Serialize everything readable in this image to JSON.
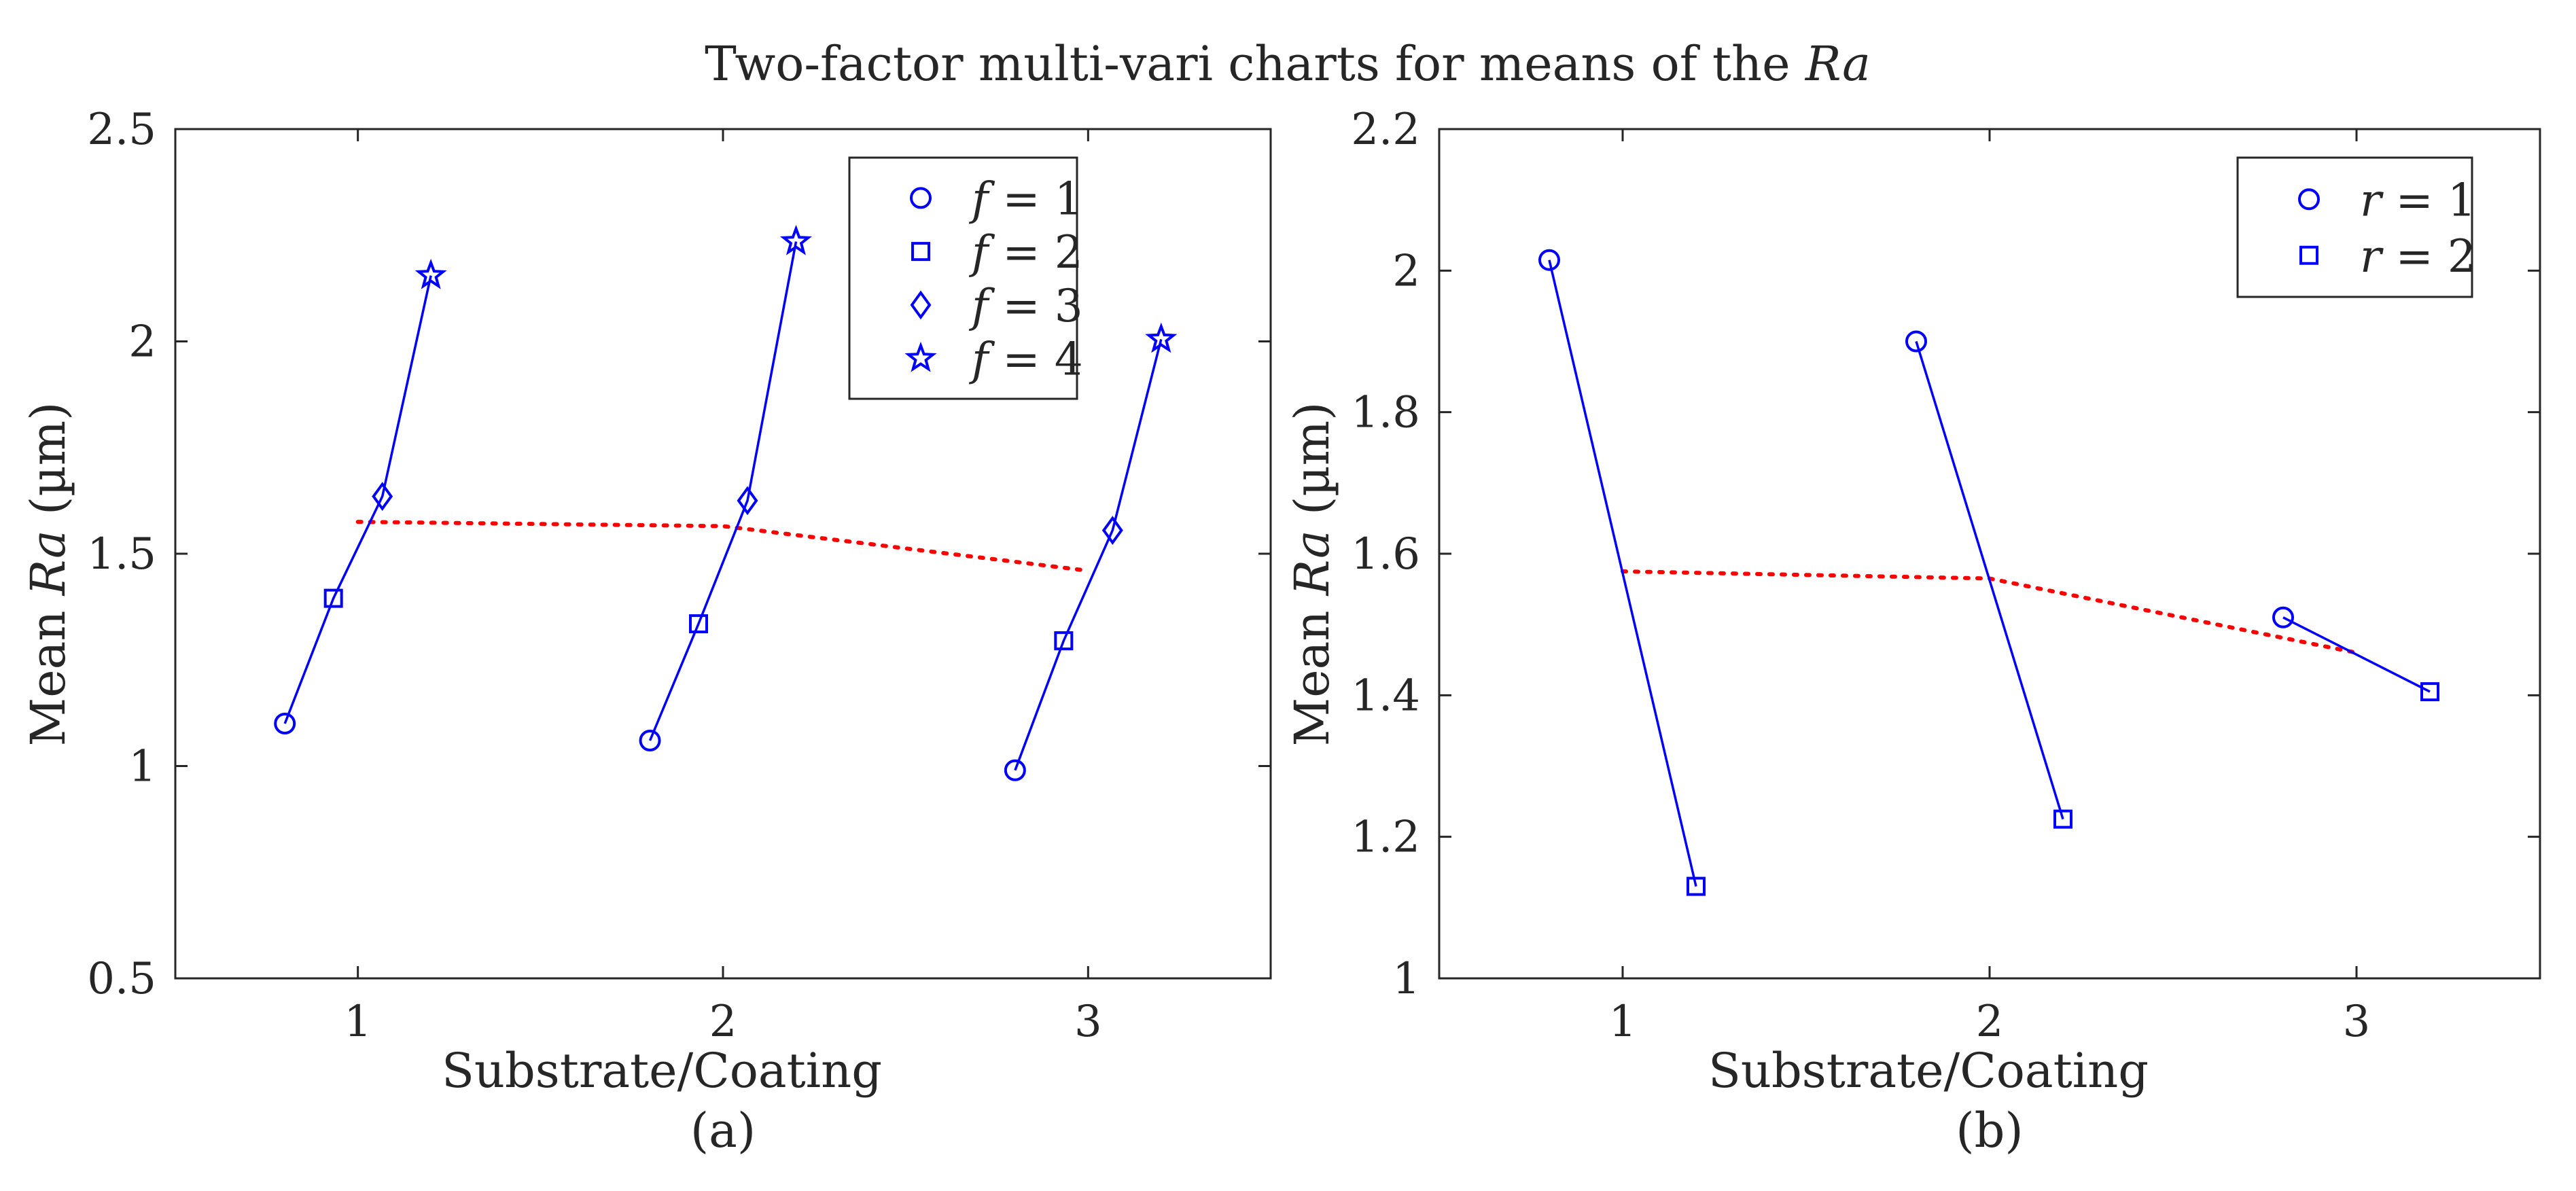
{
  "figure_title": {
    "prefix": "Two-factor multi-vari charts for means of the ",
    "emph": "Ra"
  },
  "colors": {
    "series": "#0000ff",
    "mean_line": "#ff0000",
    "axis": "#262626"
  },
  "chart_data": [
    {
      "type": "line",
      "panel_label": "(a)",
      "xlabel": "Substrate/Coating",
      "ylabel": {
        "prefix": "Mean ",
        "emph": "Ra",
        "suffix": " (µm)"
      },
      "xlim": [
        0.5,
        3.5
      ],
      "ylim": [
        0.5,
        2.5
      ],
      "xticks": [
        1,
        2,
        3
      ],
      "yticks": [
        0.5,
        1,
        1.5,
        2,
        2.5
      ],
      "ytick_labels": [
        "0.5",
        "1",
        "1.5",
        "2",
        "2.5"
      ],
      "grid": false,
      "legend_position": "top-right",
      "legend": [
        {
          "var": "f",
          "label": " = 1",
          "marker": "circle"
        },
        {
          "var": "f",
          "label": " = 2",
          "marker": "square"
        },
        {
          "var": "f",
          "label": " = 3",
          "marker": "diamond"
        },
        {
          "var": "f",
          "label": " = 4",
          "marker": "star"
        }
      ],
      "groups": [
        {
          "level": 1,
          "points": [
            {
              "x": 0.8,
              "y": 1.1
            },
            {
              "x": 0.933,
              "y": 1.395
            },
            {
              "x": 1.067,
              "y": 1.635
            },
            {
              "x": 1.2,
              "y": 2.155
            }
          ]
        },
        {
          "level": 2,
          "points": [
            {
              "x": 1.8,
              "y": 1.06
            },
            {
              "x": 1.933,
              "y": 1.335
            },
            {
              "x": 2.067,
              "y": 1.625
            },
            {
              "x": 2.2,
              "y": 2.235
            }
          ]
        },
        {
          "level": 3,
          "points": [
            {
              "x": 2.8,
              "y": 0.99
            },
            {
              "x": 2.933,
              "y": 1.295
            },
            {
              "x": 3.067,
              "y": 1.555
            },
            {
              "x": 3.2,
              "y": 2.005
            }
          ]
        }
      ],
      "mean_line": {
        "x": [
          1,
          2,
          3
        ],
        "y": [
          1.575,
          1.565,
          1.46
        ]
      }
    },
    {
      "type": "line",
      "panel_label": "(b)",
      "xlabel": "Substrate/Coating",
      "ylabel": {
        "prefix": "Mean ",
        "emph": "Ra",
        "suffix": " (µm)"
      },
      "xlim": [
        0.5,
        3.5
      ],
      "ylim": [
        1.0,
        2.2
      ],
      "xticks": [
        1,
        2,
        3
      ],
      "yticks": [
        1,
        1.2,
        1.4,
        1.6,
        1.8,
        2,
        2.2
      ],
      "ytick_labels": [
        "1",
        "1.2",
        "1.4",
        "1.6",
        "1.8",
        "2",
        "2.2"
      ],
      "grid": false,
      "legend_position": "top-right",
      "legend": [
        {
          "var": "r",
          "label": " = 1",
          "marker": "circle"
        },
        {
          "var": "r",
          "label": " = 2",
          "marker": "square"
        }
      ],
      "groups": [
        {
          "level": 1,
          "points": [
            {
              "x": 0.8,
              "y": 2.015
            },
            {
              "x": 1.2,
              "y": 1.13
            }
          ]
        },
        {
          "level": 2,
          "points": [
            {
              "x": 1.8,
              "y": 1.9
            },
            {
              "x": 2.2,
              "y": 1.225
            }
          ]
        },
        {
          "level": 3,
          "points": [
            {
              "x": 2.8,
              "y": 1.51
            },
            {
              "x": 3.2,
              "y": 1.405
            }
          ]
        }
      ],
      "mean_line": {
        "x": [
          1,
          2,
          3
        ],
        "y": [
          1.575,
          1.565,
          1.46
        ]
      }
    }
  ]
}
